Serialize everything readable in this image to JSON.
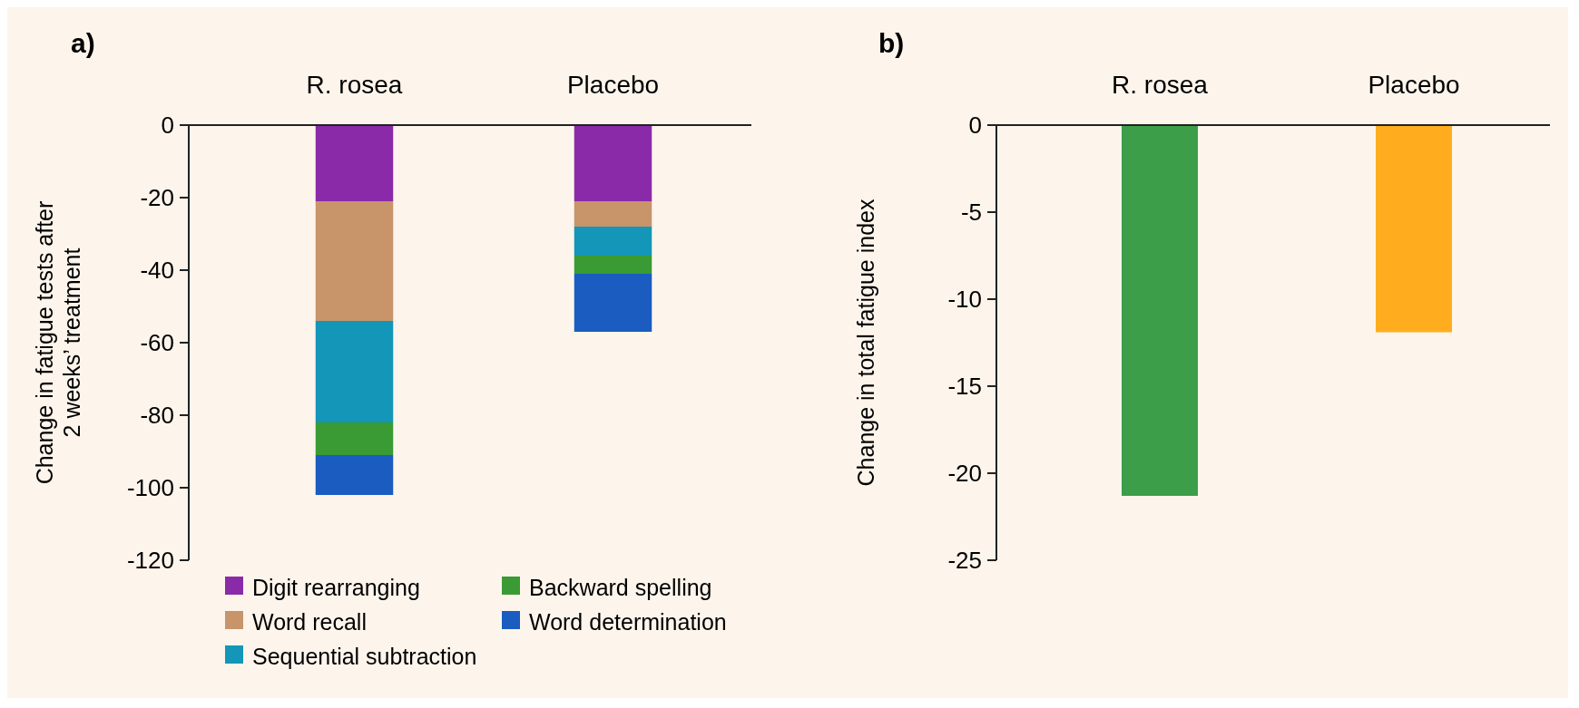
{
  "chart_data": [
    {
      "type": "bar",
      "title": "a)",
      "stacked": true,
      "categories": [
        "R. rosea",
        "Placebo"
      ],
      "ylabel": "Change in fatigue tests after\n2 weeks’ treatment",
      "ylim": [
        -120,
        0
      ],
      "yticks": [
        0,
        -20,
        -40,
        -60,
        -80,
        -100,
        -120
      ],
      "legend": "bottom",
      "series": [
        {
          "name": "Digit rearranging",
          "color": "#8a2aa8",
          "values": [
            -21,
            -21
          ]
        },
        {
          "name": "Word recall",
          "color": "#c8946a",
          "values": [
            -33,
            -7
          ]
        },
        {
          "name": "Sequential subtraction",
          "color": "#1396b8",
          "values": [
            -28,
            -8
          ]
        },
        {
          "name": "Backward spelling",
          "color": "#3a9a34",
          "values": [
            -9,
            -5
          ]
        },
        {
          "name": "Word determination",
          "color": "#1a5cc0",
          "values": [
            -11,
            -16
          ]
        }
      ]
    },
    {
      "type": "bar",
      "title": "b)",
      "categories": [
        "R. rosea",
        "Placebo"
      ],
      "ylabel": "Change in total fatigue index",
      "ylim": [
        -25,
        0
      ],
      "yticks": [
        0,
        -5,
        -10,
        -15,
        -20,
        -25
      ],
      "values": [
        -21.3,
        -11.9
      ],
      "colors": [
        "#3c9e48",
        "#ffad1f"
      ]
    }
  ]
}
